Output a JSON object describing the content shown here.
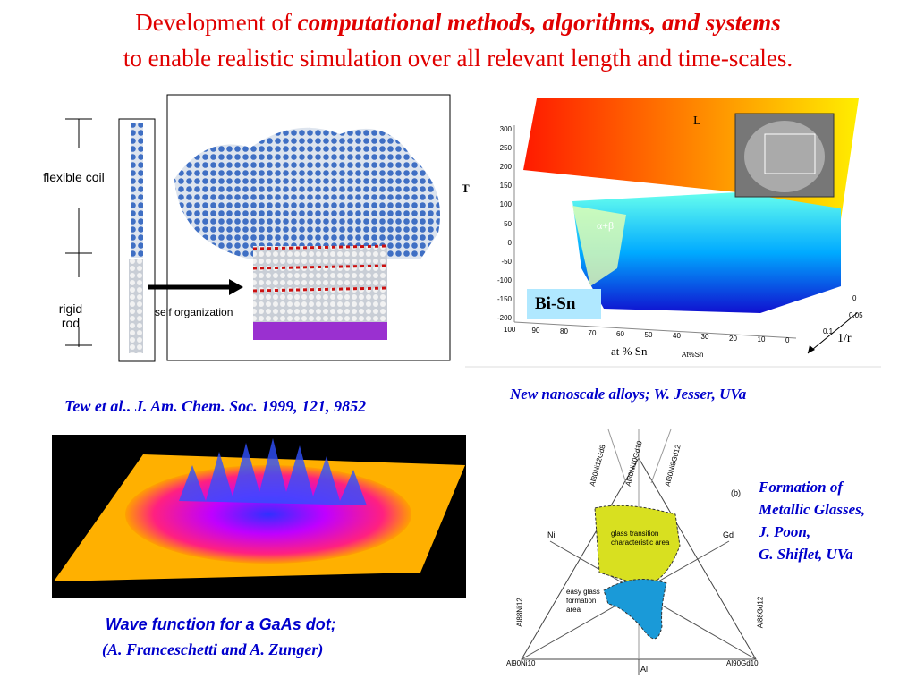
{
  "title": {
    "lead": "Development of",
    "emphasis": "computational methods, algorithms, and systems",
    "line2": "to enable realistic simulation over all relevant length and time-scales."
  },
  "polymer": {
    "flexible": "flexible coil",
    "rigid": "rigid rod",
    "arrow_label": "self organization",
    "caption": "Tew et al.. J. Am. Chem. Soc. 1999, 121, 9852"
  },
  "phase": {
    "axis_label": "T",
    "liquid": "L",
    "region": "α+β",
    "system": "Bi-Sn",
    "z_ticks": [
      300,
      250,
      200,
      150,
      100,
      50,
      0,
      -50,
      -100,
      -150,
      -200
    ],
    "x_ticks": [
      100,
      90,
      80,
      70,
      60,
      50,
      40,
      30,
      20,
      10,
      0
    ],
    "x_label": "at % Sn",
    "x_label_small": "At%Sn",
    "depth_ticks": [
      0,
      0.05,
      0.1
    ],
    "depth_label": "1/r",
    "caption": "New nanoscale alloys; W. Jesser, UVa"
  },
  "wave": {
    "caption_line1": "Wave function for a GaAs dot;",
    "caption_line2": "(A. Franceschetti and A. Zunger)"
  },
  "ternary": {
    "top_labels": [
      "Al80Ni12Gd8",
      "Al80Ni10Gd10",
      "Al80Ni8Gd12"
    ],
    "panel": "(b)",
    "ni": "Ni",
    "gd": "Gd",
    "glass_area": "glass transition characteristic area",
    "easy_area": "easy glass formation area",
    "left_side": "Al88Ni12",
    "right_side": "Al88Gd12",
    "bottom_left": "Al90Ni10",
    "bottom_right": "Al90Gd10",
    "al": "Al",
    "caption": [
      "Formation of",
      "Metallic Glasses,",
      "J. Poon,",
      "G. Shiflet, UVa"
    ]
  }
}
